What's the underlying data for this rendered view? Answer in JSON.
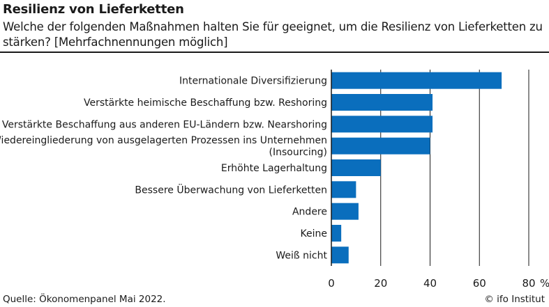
{
  "header": {
    "title": "Resilienz von Lieferketten",
    "subtitle": "Welche der folgenden Maßnahmen halten Sie für geeignet, um die Resilienz von Lieferketten zu stärken? [Mehrfachnennungen möglich]"
  },
  "footer": {
    "source": "Quelle: Ökonomenpanel Mai 2022.",
    "credit": "© ifo Institut"
  },
  "colors": {
    "bar": "#0a6ebd",
    "gridline": "#1a1a1a"
  },
  "chart_data": {
    "type": "bar",
    "orientation": "horizontal",
    "categories": [
      [
        "Internationale Diversifizierung"
      ],
      [
        "Verstärkte heimische Beschaffung bzw. Reshoring"
      ],
      [
        "Verstärkte Beschaffung aus anderen EU-Ländern bzw. Nearshoring"
      ],
      [
        "Wiedereingliederung von ausgelagerten Prozessen ins Unternehmen",
        "(Insourcing)"
      ],
      [
        "Erhöhte Lagerhaltung"
      ],
      [
        "Bessere Überwachung von Lieferketten"
      ],
      [
        "Andere"
      ],
      [
        "Keine"
      ],
      [
        "Weiß nicht"
      ]
    ],
    "values": [
      69,
      41,
      41,
      40,
      20,
      10,
      11,
      4,
      7
    ],
    "xlim": [
      0,
      80
    ],
    "xticks": [
      0,
      20,
      40,
      60,
      80
    ],
    "xtick_labels": [
      "0",
      "20",
      "40",
      "60",
      "80"
    ],
    "unit": "%",
    "grid": true
  }
}
